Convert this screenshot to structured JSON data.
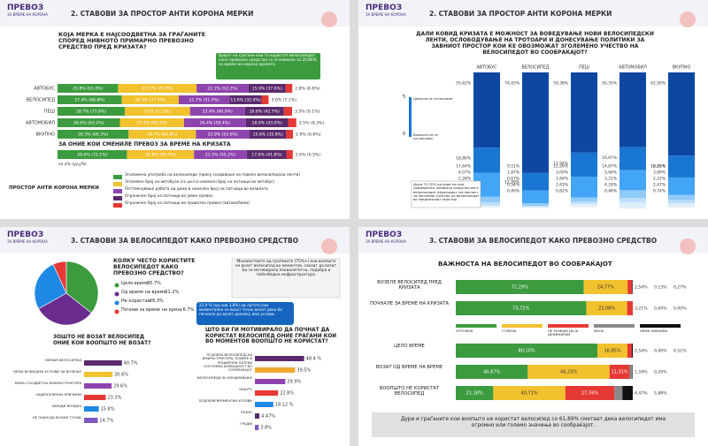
{
  "brand": "ПРЕВОЗ",
  "brand_sub": "ЗА ВРЕМЕ НА КОРОНА",
  "panel1": {
    "title": "2. СТАВОВИ ЗА ПРОСТОР АНТИ КОРОНА МЕРКИ",
    "question": "КОЈА МЕРКА Е НАЈСООДВЕТНА ЗА ГРАЃАНИТЕ СПОРЕД НИВНОТО ПРИМАРНО ПРЕВОЗНО СРЕДСТВО ПРЕД КРИЗАТА?",
    "callout": "Бројот на граѓани кои го користат велосипедот како превозно средство се зголемило за 20,86% за време на корона кризата",
    "rows": [
      {
        "label": "АВТОБУС",
        "values": [
          25.8,
          33.5,
          22.1,
          15.9,
          2.8
        ],
        "value_labels": [
          "25.8% (61.0%)",
          "33.5 % (79.3%)",
          "22.1% (52.2%)",
          "15.9% (37.6%)",
          "2.8% (6.6%)"
        ]
      },
      {
        "label": "ВЕЛОСИПЕД",
        "values": [
          27.4,
          24.3,
          21.7,
          13.6,
          3.0
        ],
        "value_labels": [
          "27.4% (88.8%)",
          "24.3% (77.7%)",
          "21.7% (51.4%)",
          "13.6% (32.4%)",
          "3.0% (7.1%)"
        ]
      },
      {
        "label": "ПЕШ",
        "values": [
          28.7,
          27.8,
          23.4,
          16.6,
          3.5
        ],
        "value_labels": [
          "28.7% (73.8%)",
          "27.8 (71.2%)",
          "23.4% (60.0%)",
          "16.6% (42.7%)",
          "3.5% (9.1%)"
        ]
      },
      {
        "label": "АВТОМОБИЛ",
        "values": [
          26.6,
          27.3,
          26.4,
          18.0,
          3.5
        ],
        "value_labels": [
          "26.6% (63.2%)",
          "27.3% (65.1%)",
          "26.4% (58.4%)",
          "18.0% (43.0%)",
          "3.5% (8.3%)"
        ]
      },
      {
        "label": "ВКУПНО",
        "values": [
          30.3,
          28.7,
          22.9,
          15.6,
          2.9
        ],
        "value_labels": [
          "30.3% (69.3%)",
          "28.7% (64.8%)",
          "22.9% (52.6%)",
          "15.6% (35.8%)",
          "2.9% (6.6%)"
        ]
      }
    ],
    "changed": {
      "label": "ЗА ОНИЕ КОИ СМЕНИЛЕ ПРЕВОЗ ЗА ВРЕМЕ НА КРИЗАТА",
      "values": [
        29.6,
        28.6,
        22.5,
        17.0,
        2.6
      ],
      "value_labels": [
        "29.6% (72.1%)",
        "28.6% (69.7%)",
        "22.5% (55.2%)",
        "17.0% (41.8%)",
        "2.6% (6.5%)"
      ]
    },
    "key_note": "xx.x% (yy.y%)",
    "legend": {
      "title": "ПРОСТОР АНТИ КОРОНА МЕРКИ",
      "items": [
        {
          "name": "Зголемена употреба на велосипеди (преку создавање на повеќе велосипедски ленти)",
          "color": "#3d9b3f"
        },
        {
          "name": "Зголемен број на автобуси (со цел и намален број на патници во автобус)",
          "color": "#f2c12e"
        },
        {
          "name": "Поттикнување работа од дома и намален број на патници во возилата",
          "color": "#8e44ad"
        },
        {
          "name": "Ограничен број на патници во јавен превоз",
          "color": "#5b2a6e"
        },
        {
          "name": "Ограничен број на патници во приватен превоз (автомобили)",
          "color": "#e53935"
        }
      ]
    }
  },
  "panel2": {
    "title": "2. СТАВОВИ ЗА ПРОСТОР АНТИ КОРОНА МЕРКИ",
    "question": "ДАЛИ КОВИД КРИЗАТА Е МОЖНОСТ ЗА ВОВЕДУВАЊЕ НОВИ ВЕЛОСИПЕДСКИ ЛЕНТИ, ОСЛОБОДУВАЊЕ НА ТРОТОАРИ И ДОНЕСУВАЊЕ ПОЛИТИКИ ЗА ЗАВНИОТ ПРОСТОР КОИ ЌЕ ОВОЗМОЖАТ ЗГОЛЕМЕНО УЧЕСТВО НА ВЕЛОСИПЕДОТ ВО СООБРАЌАЈОТ?",
    "scale_top": "5",
    "scale_top_label": "Целосно се согласувам",
    "scale_bottom": "0",
    "scale_bottom_label": "Воопшто не се согласувам",
    "colors": [
      "#0d47a1",
      "#1976d2",
      "#42a5f5",
      "#90caf9",
      "#bbdefb",
      "#dceefb",
      "#eeeeee"
    ],
    "columns": [
      {
        "name": "АВТОБУС",
        "values": [
          55.62,
          18.8,
          17.64,
          4.07,
          2.28,
          1.36,
          0.19
        ],
        "value_labels": [
          "55,62%",
          "18,80%",
          "17,64%",
          "4,07%",
          "2,28%",
          "1,36%",
          "0,19%"
        ]
      },
      {
        "name": "ВЕЛОСИПЕД",
        "values": [
          74.43,
          12.99,
          9.51,
          1.87,
          0.67,
          0.54,
          0.4
        ],
        "value_labels": [
          "74,43%",
          "12,99%",
          "9,51%",
          "1,87%",
          "0,67%",
          "0,54%",
          "0,40%"
        ]
      },
      {
        "name": "ПЕШ",
        "values": [
          59.38,
          17.94,
          15.26,
          3.09,
          1.64,
          1.65,
          0.82
        ],
        "value_labels": [
          "59,38%",
          "17,94%",
          "15,26%",
          "3,09%",
          "1,64%",
          "1,65%",
          "0,82%"
        ]
      },
      {
        "name": "АВТОМОБИЛ",
        "values": [
          55.35,
          16.97,
          14.87,
          5.66,
          3.21,
          4.28,
          0.46
        ],
        "value_labels": [
          "55,35%",
          "16,97%",
          "14,87%",
          "5,66%",
          "3,21%",
          "4,28%",
          "0,46%"
        ]
      },
      {
        "name": "ВКУПНО",
        "values": [
          61.5,
          16.25,
          12.92,
          3.89,
          2.22,
          2.47,
          0.74
        ],
        "value_labels": [
          "61,50%",
          "16,25%",
          "12,92%",
          "3,89%",
          "2,22%",
          "2,47%",
          "0,74%"
        ]
      }
    ],
    "callout": "Дури 72,32% од оние на кои примарното превозно средство им е велосипедот изразуваат согласност за поголемо учество на велосипедот во заедничкиот простор"
  },
  "panel3": {
    "title": "3. СТАВОВИ ЗА ВЕЛОСИПЕДОТ КАКО ПРЕВОЗНО СРЕДСТВО",
    "pie_question": "КОЛКУ ЧЕСТО КОРИСТИТЕ ВЕЛОСИПЕДОТ КАКО ПРЕВОЗНО СРЕДСТВО?",
    "pie": [
      {
        "name": "Цело време",
        "value": 35.7,
        "value_label": "35.7%",
        "color": "#3d9b3f"
      },
      {
        "name": "Од време на време",
        "value": 31.2,
        "value_label": "31.2%",
        "color": "#6a2c8e"
      },
      {
        "name": "Не користам",
        "value": 26.3,
        "value_label": "26.3%",
        "color": "#1e88e5"
      },
      {
        "name": "Почнав за време на криза",
        "value": 6.7,
        "value_label": "6.7%",
        "color": "#e53935"
      }
    ],
    "note1": "Мнозинството од граѓаните (75%+) кои воопшто не возат велосипед во моментов, сакаат да возат. Би ги мотивирала поквалитетна, подобра и побезбедна инфраструктура.",
    "note2": "22,9 % (од нив 3,8%) од луѓето кои моментално не возат точак велат дека би почнале да возат доколку има услови.",
    "why_title": "ЗОШТО НЕ ВОЗАТ ВЕЛОСИПЕД ОНИЕ КОИ ВООПШТО НЕ ВОЗАТ?",
    "why": {
      "categories": [
        "НЕМАМ ВЕЛОСИПЕД",
        "НЕМА БЕЗБЕДНИ УСЛОВИ ЗА ВОЗЕЊЕ",
        "НЕМА СООДВЕТНА ИНФРАСТРУКТУРА",
        "НАДРАЗЛИЧНИ ПРИЧИНИ",
        "ЗАРАДИ ВОЗДУХ",
        "НЕ ЗНАМ ДА ВОЗАМ ТОЧАК"
      ],
      "values": [
        40.7,
        30.6,
        29.6,
        23.3,
        15.8,
        14.7
      ],
      "value_labels": [
        "40.7%",
        "30.6%",
        "29.6%",
        "23.3%",
        "15.8%",
        "14.7%"
      ],
      "colors": [
        "#5b2a6e",
        "#f2c12e",
        "#8e44ad",
        "#e53935",
        "#1e88e5",
        "#7e57c2"
      ]
    },
    "motiv_title": "ШТО БИ ГИ МОТИВИРАЛО ДА ПОЧНАТ ДА КОРИСТАТ ВЕЛОСИПЕД ОНИЕ ГРАЃАНИ КОИ ВО МОМЕНТОВ ВООПШТО НЕ КОРИСТАТ?",
    "motiv": {
      "categories": [
        "ПОДОБРА ВЕЛОСИПЕДСКА ИНФРАСТРУКТУРА, ПОВЕЌЕ И ПОШИРОКИ ПАТЕКИ",
        "ПОГОЛЕМА БЕЗБЕДНОСТ ВО СООБРАЌАЈОТ",
        "ВЕЛОСИПЕДИ ЗА ИЗНАЈМУВАЊЕ",
        "НИШТО",
        "ПОДОБРИ ВРЕМЕНСКИ УСЛОВИ",
        "РАЗНО",
        "ГРАДИЈ"
      ],
      "values": [
        48.4,
        39.5,
        29.9,
        22.8,
        18.12,
        4.47,
        3.8
      ],
      "value_labels": [
        "48.4 %",
        "39.5%",
        "29.9%",
        "22.8%",
        "18.12 %",
        "4.47%",
        "3.8%"
      ],
      "colors": [
        "#5b2a6e",
        "#f2a72e",
        "#8e44ad",
        "#e53935",
        "#1e88e5",
        "#5b2a6e",
        "#7e57c2"
      ]
    }
  },
  "panel4": {
    "title": "3. СТАВОВИ ЗА ВЕЛОСИПЕДОТ КАКО ПРЕВОЗНО СРЕДСТВО",
    "subtitle": "ВАЖНОСТА НА ВЕЛОСИПЕДОТ ВО СООБРАЌАЈОТ",
    "legend": [
      {
        "name": "ОГРОМНА",
        "color": "#3d9b3f"
      },
      {
        "name": "ГОЛЕМА",
        "color": "#f2c12e"
      },
      {
        "name": "НЕ МОЖАМ ДА ЈА ДЕФИНИРАМ",
        "color": "#e53935"
      },
      {
        "name": "МАЛА",
        "color": "#8a8a8a"
      },
      {
        "name": "НЕМА НИКАКВА",
        "color": "#111111"
      }
    ],
    "group1": [
      {
        "label": "ВОЗЕЛЕ ВЕЛОСИПЕД ПРЕД КРИЗАТА",
        "values": [
          72.29,
          24.77,
          2.54,
          0.13,
          0.27
        ],
        "value_labels": [
          "72,29%",
          "24,77%",
          "2,54%",
          "0,13%",
          "0,27%"
        ]
      },
      {
        "label": "ПОЧНАЛЕ ЗА ВРЕМЕ НА КРИЗАТА",
        "values": [
          73.72,
          23.08,
          3.21,
          0.0,
          0.0
        ],
        "value_labels": [
          "73,72%",
          "23,08%",
          "3,21%",
          "0,00%",
          "0,00%"
        ]
      }
    ],
    "group2": [
      {
        "label": "ЦЕЛО ВРЕМЕ",
        "values": [
          80.1,
          16.85,
          2.54,
          0.0,
          0.51
        ],
        "value_labels": [
          "80,10%",
          "16,85%",
          "2,54%",
          "0,00%",
          "0,51%"
        ]
      },
      {
        "label": "ВОЗАТ ОД ВРЕМЕ НА ВРЕМЕ",
        "values": [
          40.67,
          46.23,
          11.31,
          1.59,
          0.2
        ],
        "value_labels": [
          "40,67%",
          "46,23%",
          "11,31%",
          "1,59%",
          "0,20%"
        ]
      },
      {
        "label": "ВООПШТО НЕ КОРИСТАТ ВЕЛОСИПЕД",
        "values": [
          21.18,
          40.71,
          27.76,
          4.47,
          5.88
        ],
        "value_labels": [
          "21,18%",
          "40,71%",
          "27,76%",
          "4,47%",
          "5,88%"
        ]
      }
    ],
    "footer": "Дури и граѓаните кои воопшто не користат велосипед со 61,89% сметаат дека велосипедот има огромно или големо значење во сообраќајот."
  }
}
